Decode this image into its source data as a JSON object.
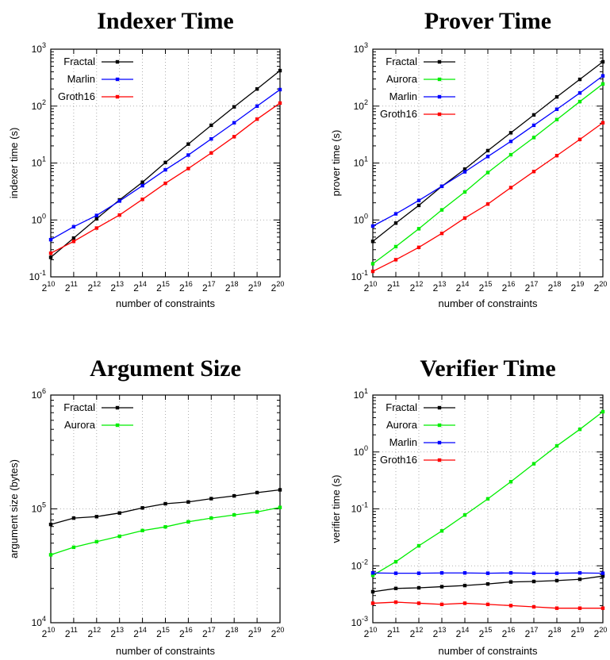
{
  "chart_data": [
    {
      "type": "line",
      "title": "Indexer Time",
      "xlabel": "number of constraints",
      "ylabel": "indexer time (s)",
      "yscale": "log",
      "xlim": [
        10,
        20
      ],
      "ylim": [
        0.1,
        1000
      ],
      "grid": true,
      "legend_position": "top-left",
      "x": [
        10,
        11,
        12,
        13,
        14,
        15,
        16,
        17,
        18,
        19,
        20
      ],
      "x_tick_labels": [
        "2^10",
        "2^11",
        "2^12",
        "2^13",
        "2^14",
        "2^15",
        "2^16",
        "2^17",
        "2^18",
        "2^19",
        "2^20"
      ],
      "y_ticks": [
        {
          "base": "10",
          "exp": "-1"
        },
        {
          "base": "10",
          "exp": "0"
        },
        {
          "base": "10",
          "exp": "1"
        },
        {
          "base": "10",
          "exp": "2"
        },
        {
          "base": "10",
          "exp": "3"
        }
      ],
      "series": [
        {
          "name": "Fractal",
          "color": "#000000",
          "values": [
            0.22,
            0.48,
            1.05,
            2.25,
            4.6,
            10.2,
            21.5,
            46,
            97,
            200,
            420
          ]
        },
        {
          "name": "Marlin",
          "color": "#0000ff",
          "values": [
            0.45,
            0.76,
            1.2,
            2.15,
            4.0,
            7.6,
            13.8,
            26.5,
            51,
            100,
            195
          ]
        },
        {
          "name": "Groth16",
          "color": "#ff0000",
          "values": [
            0.26,
            0.42,
            0.72,
            1.22,
            2.3,
            4.4,
            8.0,
            15,
            29,
            59,
            113
          ]
        }
      ]
    },
    {
      "type": "line",
      "title": "Prover Time",
      "xlabel": "number of constraints",
      "ylabel": "prover time (s)",
      "yscale": "log",
      "xlim": [
        10,
        20
      ],
      "ylim": [
        0.1,
        1000
      ],
      "grid": true,
      "legend_position": "top-left",
      "x": [
        10,
        11,
        12,
        13,
        14,
        15,
        16,
        17,
        18,
        19,
        20
      ],
      "x_tick_labels": [
        "2^10",
        "2^11",
        "2^12",
        "2^13",
        "2^14",
        "2^15",
        "2^16",
        "2^17",
        "2^18",
        "2^19",
        "2^20"
      ],
      "y_ticks": [
        {
          "base": "10",
          "exp": "-1"
        },
        {
          "base": "10",
          "exp": "0"
        },
        {
          "base": "10",
          "exp": "1"
        },
        {
          "base": "10",
          "exp": "2"
        },
        {
          "base": "10",
          "exp": "3"
        }
      ],
      "series": [
        {
          "name": "Fractal",
          "color": "#000000",
          "values": [
            0.42,
            0.88,
            1.8,
            3.9,
            7.8,
            16.5,
            34,
            70,
            145,
            295,
            600
          ]
        },
        {
          "name": "Aurora",
          "color": "#00ee00",
          "values": [
            0.17,
            0.34,
            0.7,
            1.5,
            3.1,
            6.8,
            14,
            28,
            58,
            120,
            245
          ]
        },
        {
          "name": "Marlin",
          "color": "#0000ff",
          "values": [
            0.78,
            1.28,
            2.2,
            3.9,
            7.0,
            13,
            24,
            46,
            88,
            170,
            340
          ]
        },
        {
          "name": "Groth16",
          "color": "#ff0000",
          "values": [
            0.125,
            0.2,
            0.33,
            0.58,
            1.08,
            1.9,
            3.7,
            7.1,
            13.5,
            26,
            51
          ]
        }
      ]
    },
    {
      "type": "line",
      "title": "Argument Size",
      "xlabel": "number of constraints",
      "ylabel": "argument size (bytes)",
      "yscale": "log",
      "xlim": [
        10,
        20
      ],
      "ylim": [
        10000,
        1000000
      ],
      "grid": true,
      "legend_position": "top-left",
      "x": [
        10,
        11,
        12,
        13,
        14,
        15,
        16,
        17,
        18,
        19,
        20
      ],
      "x_tick_labels": [
        "2^10",
        "2^11",
        "2^12",
        "2^13",
        "2^14",
        "2^15",
        "2^16",
        "2^17",
        "2^18",
        "2^19",
        "2^20"
      ],
      "y_ticks": [
        {
          "base": "10",
          "exp": "4"
        },
        {
          "base": "10",
          "exp": "5"
        },
        {
          "base": "10",
          "exp": "6"
        }
      ],
      "series": [
        {
          "name": "Fractal",
          "color": "#000000",
          "values": [
            73000,
            83000,
            85500,
            92000,
            102000,
            111000,
            115000,
            123000,
            130000,
            139000,
            147000
          ]
        },
        {
          "name": "Aurora",
          "color": "#00ee00",
          "values": [
            39500,
            46000,
            51500,
            57500,
            64500,
            69500,
            77000,
            83000,
            88500,
            94000,
            103000
          ]
        }
      ]
    },
    {
      "type": "line",
      "title": "Verifier Time",
      "xlabel": "number of constraints",
      "ylabel": "verifier time (s)",
      "yscale": "log",
      "xlim": [
        10,
        20
      ],
      "ylim": [
        0.001,
        10
      ],
      "grid": true,
      "legend_position": "top-left",
      "x": [
        10,
        11,
        12,
        13,
        14,
        15,
        16,
        17,
        18,
        19,
        20
      ],
      "x_tick_labels": [
        "2^10",
        "2^11",
        "2^12",
        "2^13",
        "2^14",
        "2^15",
        "2^16",
        "2^17",
        "2^18",
        "2^19",
        "2^20"
      ],
      "y_ticks": [
        {
          "base": "10",
          "exp": "-3"
        },
        {
          "base": "10",
          "exp": "-2"
        },
        {
          "base": "10",
          "exp": "-1"
        },
        {
          "base": "10",
          "exp": "0"
        },
        {
          "base": "10",
          "exp": "1"
        }
      ],
      "series": [
        {
          "name": "Fractal",
          "color": "#000000",
          "values": [
            0.0035,
            0.004,
            0.0041,
            0.0043,
            0.0045,
            0.0048,
            0.0052,
            0.0053,
            0.0055,
            0.0058,
            0.0066
          ]
        },
        {
          "name": "Aurora",
          "color": "#00ee00",
          "values": [
            0.0068,
            0.0118,
            0.0225,
            0.041,
            0.078,
            0.15,
            0.3,
            0.62,
            1.28,
            2.5,
            5.1
          ]
        },
        {
          "name": "Marlin",
          "color": "#0000ff",
          "values": [
            0.0075,
            0.0074,
            0.0074,
            0.0075,
            0.0075,
            0.0074,
            0.0075,
            0.0074,
            0.0074,
            0.0075,
            0.0074
          ]
        },
        {
          "name": "Groth16",
          "color": "#ff0000",
          "values": [
            0.0022,
            0.0023,
            0.0022,
            0.0021,
            0.0022,
            0.0021,
            0.002,
            0.0019,
            0.0018,
            0.0018,
            0.0018
          ]
        }
      ]
    }
  ]
}
